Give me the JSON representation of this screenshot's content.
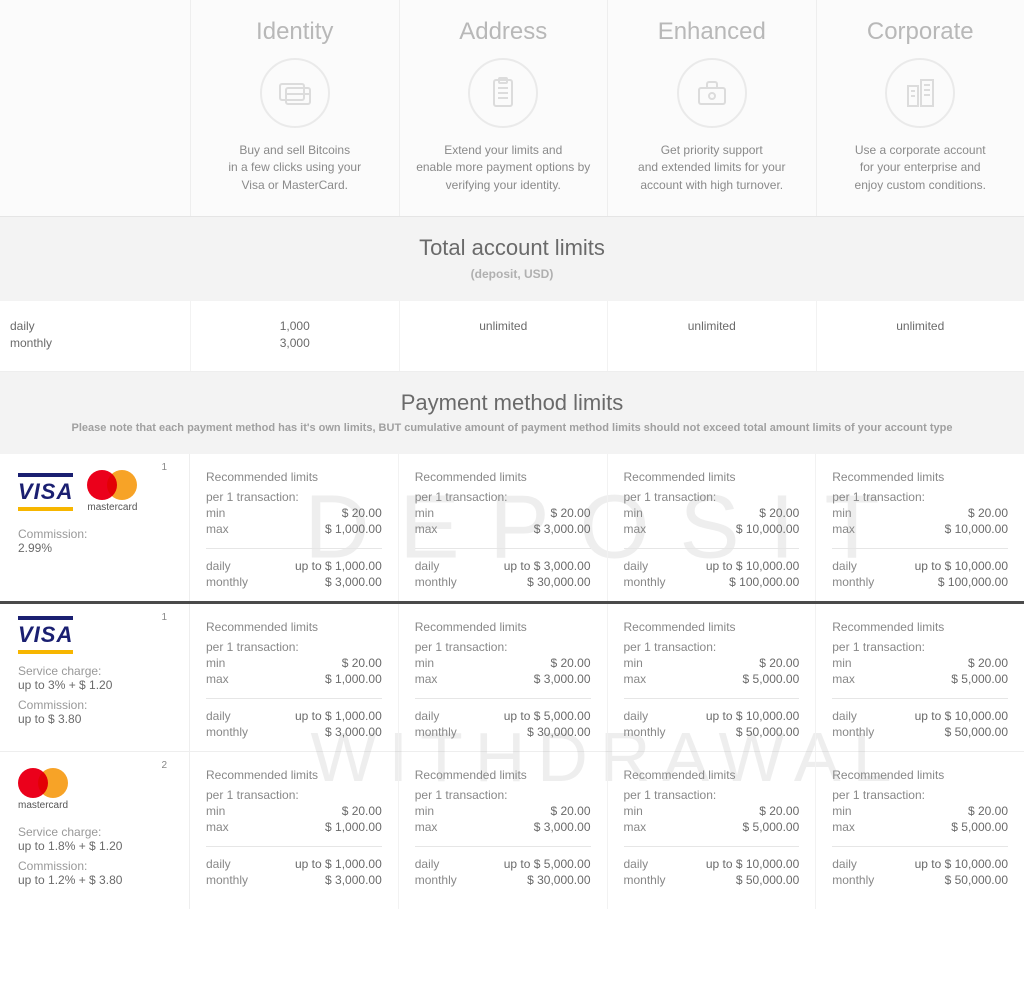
{
  "tiers": [
    {
      "name": "Identity",
      "description": "Buy and sell Bitcoins\nin a few clicks using your\nVisa or MasterCard."
    },
    {
      "name": "Address",
      "description": "Extend your limits and\nenable more payment options by\nverifying your identity."
    },
    {
      "name": "Enhanced",
      "description": "Get priority support\nand extended limits for your\naccount with high turnover."
    },
    {
      "name": "Corporate",
      "description": "Use a corporate account\nfor your enterprise and\nenjoy custom conditions."
    }
  ],
  "totals": {
    "title": "Total account limits",
    "subtitle": "(deposit, USD)",
    "row1_label": "daily",
    "row2_label": "monthly",
    "cells": [
      {
        "daily": "1,000",
        "monthly": "3,000"
      },
      {
        "daily": "unlimited",
        "monthly": ""
      },
      {
        "daily": "unlimited",
        "monthly": ""
      },
      {
        "daily": "unlimited",
        "monthly": ""
      }
    ]
  },
  "payment_header": {
    "title": "Payment method limits",
    "note": "Please note that each payment method has it's own limits, BUT cumulative amount of payment method limits should not exceed total amount limits of your account type"
  },
  "labels": {
    "recommended": "Recommended limits",
    "per_tx": "per 1 transaction:",
    "min": "min",
    "max": "max",
    "daily": "daily",
    "monthly": "monthly",
    "commission": "Commission:",
    "service_charge": "Service charge:",
    "up_to": "up to"
  },
  "watermarks": {
    "deposit": "DEPOSIT",
    "withdrawal": "WITHDRAWAL"
  },
  "deposit": {
    "method": {
      "logos": [
        "visa",
        "mastercard"
      ],
      "footnote": "1",
      "commission": "2.99%"
    },
    "cells": [
      {
        "min": "$ 20.00",
        "max": "$ 1,000.00",
        "daily": "up to $ 1,000.00",
        "monthly": "$ 3,000.00"
      },
      {
        "min": "$ 20.00",
        "max": "$ 3,000.00",
        "daily": "up to $ 3,000.00",
        "monthly": "$ 30,000.00"
      },
      {
        "min": "$ 20.00",
        "max": "$ 10,000.00",
        "daily": "up to $ 10,000.00",
        "monthly": "$ 100,000.00"
      },
      {
        "min": "$ 20.00",
        "max": "$ 10,000.00",
        "daily": "up to $ 10,000.00",
        "monthly": "$ 100,000.00"
      }
    ]
  },
  "withdrawal": [
    {
      "method": {
        "logos": [
          "visa"
        ],
        "footnote": "1",
        "service_charge": "up to 3% + $ 1.20",
        "commission": "up to $ 3.80"
      },
      "cells": [
        {
          "min": "$ 20.00",
          "max": "$ 1,000.00",
          "daily": "up to $ 1,000.00",
          "monthly": "$ 3,000.00"
        },
        {
          "min": "$ 20.00",
          "max": "$ 3,000.00",
          "daily": "up to $ 5,000.00",
          "monthly": "$ 30,000.00"
        },
        {
          "min": "$ 20.00",
          "max": "$ 5,000.00",
          "daily": "up to $ 10,000.00",
          "monthly": "$ 50,000.00"
        },
        {
          "min": "$ 20.00",
          "max": "$ 5,000.00",
          "daily": "up to $ 10,000.00",
          "monthly": "$ 50,000.00"
        }
      ]
    },
    {
      "method": {
        "logos": [
          "mastercard"
        ],
        "footnote": "2",
        "service_charge": "up to 1.8% + $ 1.20",
        "commission": "up to 1.2% + $ 3.80"
      },
      "cells": [
        {
          "min": "$ 20.00",
          "max": "$ 1,000.00",
          "daily": "up to $ 1,000.00",
          "monthly": "$ 3,000.00"
        },
        {
          "min": "$ 20.00",
          "max": "$ 3,000.00",
          "daily": "up to $ 5,000.00",
          "monthly": "$ 30,000.00"
        },
        {
          "min": "$ 20.00",
          "max": "$ 5,000.00",
          "daily": "up to $ 10,000.00",
          "monthly": "$ 50,000.00"
        },
        {
          "min": "$ 20.00",
          "max": "$ 5,000.00",
          "daily": "up to $ 10,000.00",
          "monthly": "$ 50,000.00"
        }
      ]
    }
  ],
  "colors": {
    "bg_grey": "#f3f3f3",
    "border": "#eeeeee",
    "text_primary": "#6a6a6a",
    "text_muted": "#a0a0a0",
    "tier_title": "#b8b8b8"
  }
}
